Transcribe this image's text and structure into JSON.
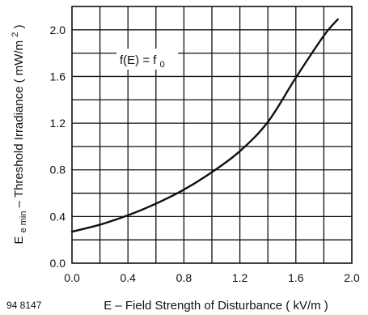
{
  "chart_data": {
    "type": "line",
    "title": "",
    "xlabel": "E – Field Strength of Disturbance ( kV/m )",
    "ylabel": {
      "main": "E",
      "subscript": "e min",
      "rest": "– Threshold Irradiance ( mW/m",
      "superscript": "2",
      "close": " )"
    },
    "xlim": [
      0.0,
      2.0
    ],
    "ylim": [
      0.0,
      2.2
    ],
    "x_ticks": [
      "0.0",
      "0.4",
      "0.8",
      "1.2",
      "1.6",
      "2.0"
    ],
    "y_ticks": [
      "0.0",
      "0.4",
      "0.8",
      "1.2",
      "1.6",
      "2.0"
    ],
    "grid": true,
    "series": [
      {
        "x": [
          0.0,
          0.2,
          0.4,
          0.6,
          0.8,
          1.0,
          1.2,
          1.4,
          1.6,
          1.8,
          1.9
        ],
        "y": [
          0.27,
          0.33,
          0.41,
          0.51,
          0.63,
          0.78,
          0.96,
          1.21,
          1.59,
          1.95,
          2.09
        ]
      }
    ],
    "annotation": {
      "text": "f(E) = f",
      "sub": "0"
    },
    "figure_code": "94 8147"
  },
  "colors": {
    "line": "#111111",
    "grid": "#111111",
    "background": "#ffffff"
  }
}
